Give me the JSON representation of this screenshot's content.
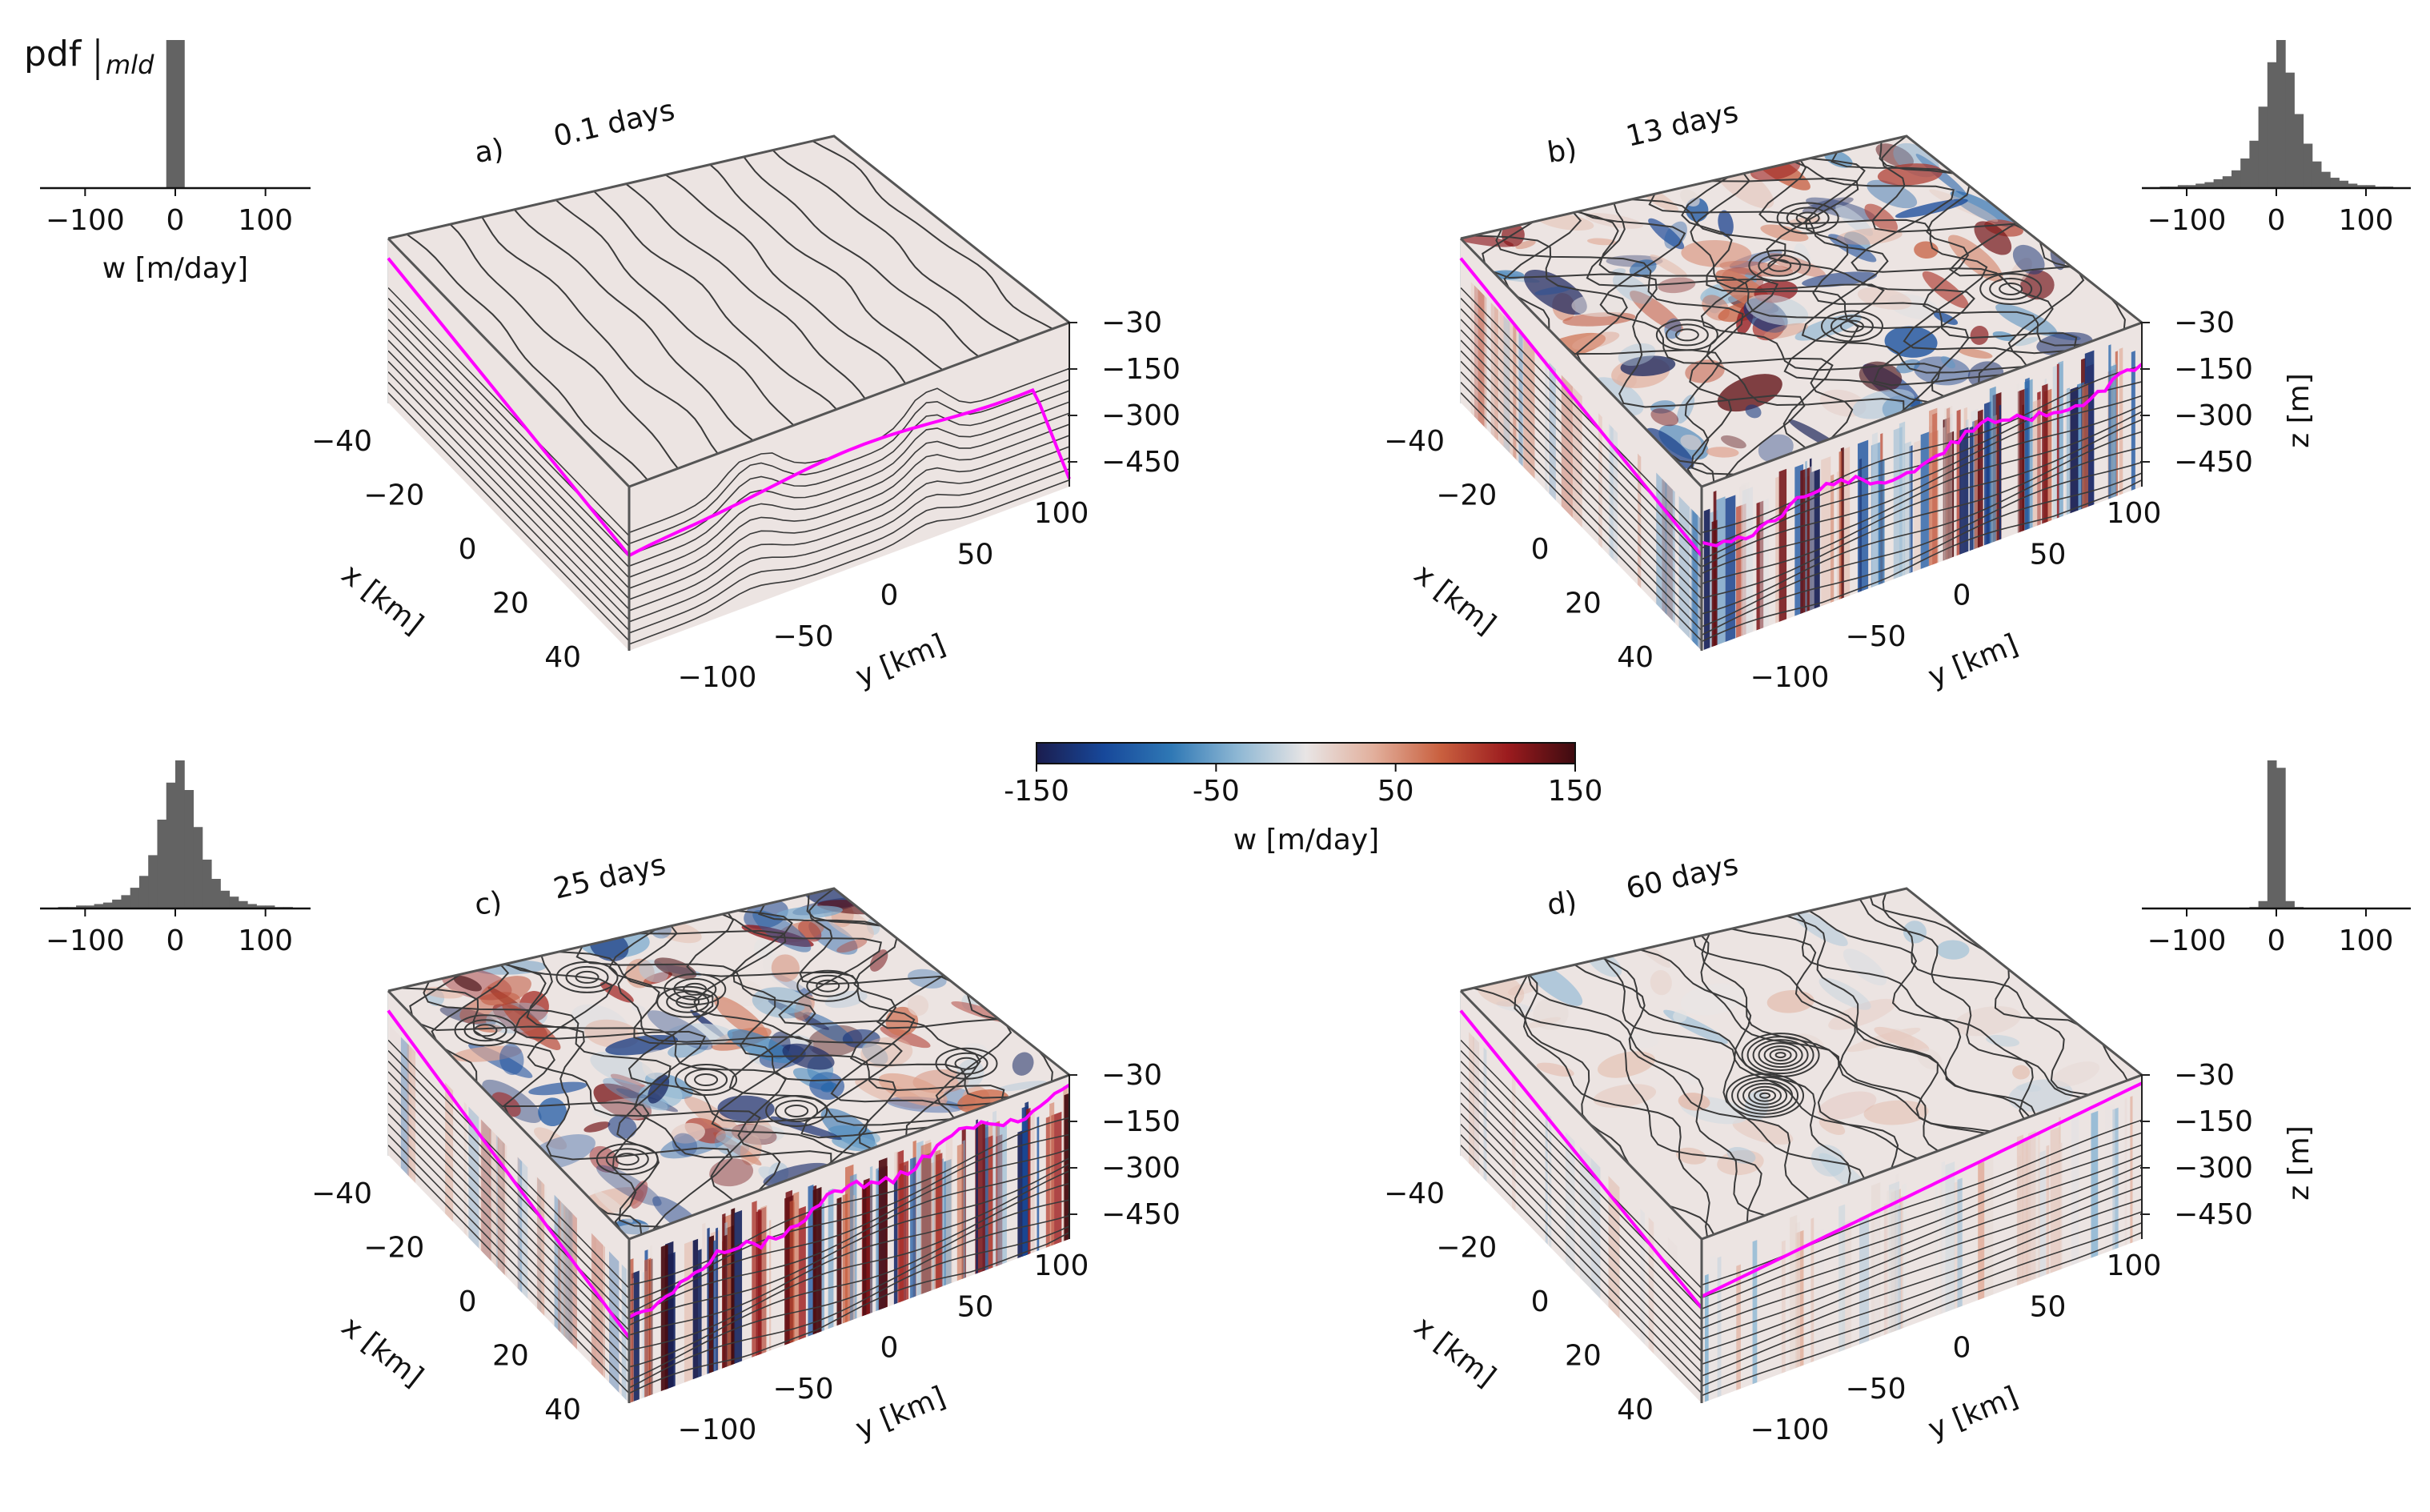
{
  "colors": {
    "mld_line": "#ff00ff",
    "hist_bar": "#636363",
    "contour": "#3a3a3a",
    "box_edge": "#555555",
    "cmap": [
      "#1b1d4e",
      "#17489a",
      "#2f78b5",
      "#8fb8d4",
      "#e8e5e5",
      "#e2b09d",
      "#c9603f",
      "#9b1b1e",
      "#3d0b10"
    ]
  },
  "colorbar": {
    "label": "w [m/day]",
    "ticks": [
      -150,
      -50,
      50,
      150
    ]
  },
  "hist_ylabel": "pdf",
  "hist_ylabel_sub": "mld",
  "chart_data": [
    {
      "type": "surface3d",
      "panel": "a)",
      "title": "0.1 days",
      "x_label": "x [km]",
      "x_ticks": [
        -40,
        -20,
        0,
        20,
        40
      ],
      "y_label": "y [km]",
      "y_ticks": [
        -100,
        -50,
        0,
        50,
        100
      ],
      "z_label": "",
      "z_ticks": [
        -30,
        -150,
        -300,
        -450
      ],
      "intensity": 0.0,
      "histogram": {
        "xlabel": "w [m/day]",
        "x_ticks": [
          -100,
          0,
          100
        ],
        "bin_centers": [
          -5,
          5
        ],
        "values": [
          1.0,
          1.0
        ]
      }
    },
    {
      "type": "surface3d",
      "panel": "b)",
      "title": "13 days",
      "x_label": "x [km]",
      "x_ticks": [
        -40,
        -20,
        0,
        20,
        40
      ],
      "y_label": "y [km]",
      "y_ticks": [
        -100,
        -50,
        0,
        50,
        100
      ],
      "z_label": "z [m]",
      "z_ticks": [
        -30,
        -150,
        -300,
        -450
      ],
      "intensity": 0.8,
      "histogram": {
        "xlabel": "",
        "x_ticks": [
          -100,
          0,
          100
        ],
        "bin_centers": [
          -125,
          -115,
          -105,
          -95,
          -85,
          -75,
          -65,
          -55,
          -45,
          -35,
          -25,
          -15,
          -5,
          5,
          15,
          25,
          35,
          45,
          55,
          65,
          75,
          85,
          95,
          105,
          115,
          125
        ],
        "values": [
          0.01,
          0.01,
          0.02,
          0.02,
          0.03,
          0.04,
          0.06,
          0.08,
          0.12,
          0.2,
          0.32,
          0.55,
          0.85,
          1.0,
          0.78,
          0.5,
          0.3,
          0.18,
          0.11,
          0.07,
          0.05,
          0.03,
          0.02,
          0.02,
          0.01,
          0.01
        ]
      }
    },
    {
      "type": "surface3d",
      "panel": "c)",
      "title": "25 days",
      "x_label": "x [km]",
      "x_ticks": [
        -40,
        -20,
        0,
        20,
        40
      ],
      "y_label": "y [km]",
      "y_ticks": [
        -100,
        -50,
        0,
        50,
        100
      ],
      "z_label": "",
      "z_ticks": [
        -30,
        -150,
        -300,
        -450
      ],
      "intensity": 1.0,
      "histogram": {
        "xlabel": "",
        "x_ticks": [
          -100,
          0,
          100
        ],
        "bin_centers": [
          -125,
          -115,
          -105,
          -95,
          -85,
          -75,
          -65,
          -55,
          -45,
          -35,
          -25,
          -15,
          -5,
          5,
          15,
          25,
          35,
          45,
          55,
          65,
          75,
          85,
          95,
          105,
          115,
          125
        ],
        "values": [
          0.01,
          0.01,
          0.02,
          0.02,
          0.03,
          0.04,
          0.06,
          0.09,
          0.14,
          0.22,
          0.36,
          0.6,
          0.85,
          1.0,
          0.8,
          0.55,
          0.33,
          0.2,
          0.12,
          0.08,
          0.05,
          0.03,
          0.02,
          0.02,
          0.01,
          0.01
        ]
      }
    },
    {
      "type": "surface3d",
      "panel": "d)",
      "title": "60 days",
      "x_label": "x [km]",
      "x_ticks": [
        -40,
        -20,
        0,
        20,
        40
      ],
      "y_label": "y [km]",
      "y_ticks": [
        -100,
        -50,
        0,
        50,
        100
      ],
      "z_label": "z [m]",
      "z_ticks": [
        -30,
        -150,
        -300,
        -450
      ],
      "intensity": 0.15,
      "histogram": {
        "xlabel": "",
        "x_ticks": [
          -100,
          0,
          100
        ],
        "bin_centers": [
          -25,
          -15,
          -5,
          5,
          15,
          25
        ],
        "values": [
          0.01,
          0.05,
          1.0,
          0.95,
          0.05,
          0.01
        ]
      }
    }
  ]
}
